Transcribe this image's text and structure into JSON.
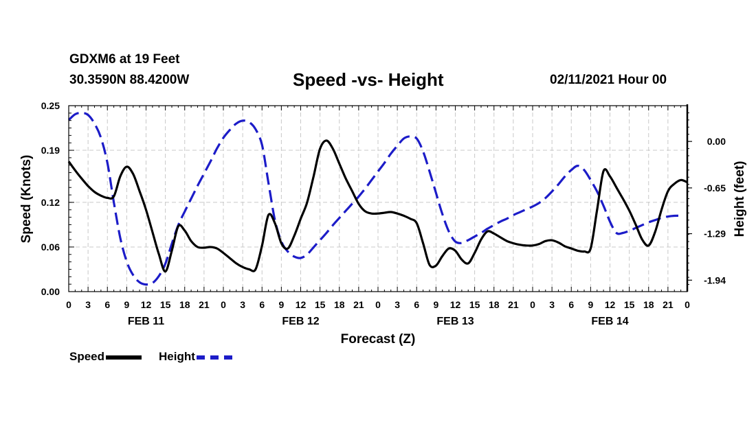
{
  "header": {
    "station": "GDXM6 at 19 Feet",
    "coords": "30.3590N 88.4200W",
    "title": "Speed -vs- Height",
    "date": "02/11/2021 Hour 00"
  },
  "legend": {
    "speed": "Speed",
    "height": "Height"
  },
  "chart_data": {
    "type": "line",
    "title": "Speed -vs- Height",
    "xlabel": "Forecast (Z)",
    "ylabel": "Speed (Knots)",
    "y2label": "Height (feet)",
    "xlim": [
      0,
      96
    ],
    "ylim": [
      0,
      0.25
    ],
    "y2lim": [
      -2.1,
      0.5
    ],
    "grid": true,
    "x_tick_hours": [
      0,
      3,
      6,
      9,
      12,
      15,
      18,
      21,
      24,
      27,
      30,
      33,
      36,
      39,
      42,
      45,
      48,
      51,
      54,
      57,
      60,
      63,
      66,
      69,
      72,
      75,
      78,
      81,
      84,
      87,
      90,
      93,
      96
    ],
    "x_tick_labels": [
      "0",
      "3",
      "6",
      "9",
      "12",
      "15",
      "18",
      "21",
      "0",
      "3",
      "6",
      "9",
      "12",
      "15",
      "18",
      "21",
      "0",
      "3",
      "6",
      "9",
      "12",
      "15",
      "18",
      "21",
      "0",
      "3",
      "6",
      "9",
      "12",
      "15",
      "18",
      "21",
      "0"
    ],
    "date_labels": [
      {
        "hour": 12,
        "label": "FEB 11"
      },
      {
        "hour": 36,
        "label": "FEB 12"
      },
      {
        "hour": 60,
        "label": "FEB 13"
      },
      {
        "hour": 84,
        "label": "FEB 14"
      }
    ],
    "y_ticks": [
      0.0,
      0.06,
      0.12,
      0.19,
      0.25
    ],
    "y_tick_labels": [
      "0.00",
      "0.06",
      "0.12",
      "0.19",
      "0.25"
    ],
    "y2_ticks": [
      0.0,
      -0.65,
      -1.29,
      -1.94
    ],
    "y2_tick_labels": [
      "0.00",
      "-0.65",
      "-1.29",
      "-1.94"
    ],
    "legend_position": "bottom-left",
    "series": [
      {
        "name": "Speed",
        "axis": "left",
        "color": "#000000",
        "dash": "solid",
        "x": [
          0,
          1,
          2,
          3,
          4,
          5,
          6,
          7,
          8,
          9,
          10,
          11,
          12,
          13,
          14,
          15,
          16,
          17,
          18,
          19,
          20,
          21,
          22,
          23,
          24,
          25,
          26,
          27,
          28,
          29,
          30,
          31,
          32,
          33,
          34,
          35,
          36,
          37,
          38,
          39,
          40,
          41,
          42,
          43,
          44,
          45,
          46,
          47,
          48,
          49,
          50,
          51,
          52,
          53,
          54,
          55,
          56,
          57,
          58,
          59,
          60,
          61,
          62,
          63,
          64,
          65,
          66,
          67,
          68,
          69,
          70,
          71,
          72,
          73,
          74,
          75,
          76,
          77,
          78,
          79,
          80,
          81,
          82,
          83,
          84,
          85,
          86,
          87,
          88,
          89,
          90,
          91,
          92,
          93,
          94,
          95,
          96
        ],
        "values": [
          0.175,
          0.163,
          0.152,
          0.142,
          0.134,
          0.129,
          0.126,
          0.128,
          0.155,
          0.168,
          0.158,
          0.135,
          0.11,
          0.08,
          0.05,
          0.027,
          0.055,
          0.088,
          0.082,
          0.068,
          0.06,
          0.059,
          0.06,
          0.058,
          0.052,
          0.045,
          0.038,
          0.033,
          0.03,
          0.03,
          0.062,
          0.103,
          0.092,
          0.065,
          0.058,
          0.075,
          0.098,
          0.12,
          0.155,
          0.192,
          0.203,
          0.192,
          0.172,
          0.152,
          0.135,
          0.118,
          0.108,
          0.105,
          0.105,
          0.106,
          0.107,
          0.105,
          0.102,
          0.098,
          0.092,
          0.065,
          0.036,
          0.035,
          0.048,
          0.058,
          0.055,
          0.043,
          0.038,
          0.052,
          0.07,
          0.081,
          0.078,
          0.073,
          0.068,
          0.065,
          0.063,
          0.062,
          0.062,
          0.064,
          0.068,
          0.069,
          0.066,
          0.061,
          0.058,
          0.055,
          0.054,
          0.058,
          0.11,
          0.162,
          0.155,
          0.14,
          0.125,
          0.109,
          0.09,
          0.07,
          0.062,
          0.08,
          0.11,
          0.135,
          0.145,
          0.15,
          0.147
        ]
      },
      {
        "name": "Height",
        "axis": "right",
        "color": "#1c1cc8",
        "dash": "dashed",
        "x": [
          0,
          1,
          2,
          3,
          4,
          5,
          6,
          7,
          8,
          9,
          10,
          11,
          12,
          13,
          14,
          15,
          16,
          17,
          18,
          19,
          20,
          21,
          22,
          23,
          24,
          25,
          26,
          27,
          28,
          29,
          30,
          31,
          32,
          33,
          34,
          35,
          36,
          37,
          38,
          39,
          40,
          41,
          42,
          43,
          44,
          45,
          46,
          47,
          48,
          49,
          50,
          51,
          52,
          53,
          54,
          55,
          56,
          57,
          58,
          59,
          60,
          61,
          62,
          63,
          64,
          65,
          66,
          67,
          68,
          69,
          70,
          71,
          72,
          73,
          74,
          75,
          76,
          77,
          78,
          79,
          80,
          81,
          82,
          83,
          84,
          85,
          86,
          87,
          88,
          89,
          90,
          91,
          92,
          93,
          94,
          95,
          94.7
        ],
        "values": [
          0.3,
          0.38,
          0.4,
          0.37,
          0.25,
          0.05,
          -0.3,
          -0.85,
          -1.35,
          -1.68,
          -1.87,
          -1.97,
          -2.0,
          -1.98,
          -1.88,
          -1.71,
          -1.43,
          -1.17,
          -0.98,
          -0.8,
          -0.62,
          -0.45,
          -0.28,
          -0.1,
          0.05,
          0.16,
          0.25,
          0.29,
          0.27,
          0.17,
          -0.05,
          -0.58,
          -1.1,
          -1.4,
          -1.54,
          -1.61,
          -1.63,
          -1.58,
          -1.48,
          -1.38,
          -1.28,
          -1.17,
          -1.07,
          -0.97,
          -0.87,
          -0.77,
          -0.66,
          -0.54,
          -0.42,
          -0.3,
          -0.17,
          -0.06,
          0.04,
          0.07,
          0.04,
          -0.14,
          -0.42,
          -0.72,
          -1.02,
          -1.26,
          -1.4,
          -1.42,
          -1.38,
          -1.33,
          -1.28,
          -1.22,
          -1.17,
          -1.12,
          -1.08,
          -1.03,
          -0.99,
          -0.95,
          -0.91,
          -0.86,
          -0.79,
          -0.7,
          -0.6,
          -0.49,
          -0.4,
          -0.34,
          -0.4,
          -0.54,
          -0.7,
          -0.9,
          -1.12,
          -1.28,
          -1.28,
          -1.25,
          -1.21,
          -1.17,
          -1.13,
          -1.1,
          -1.07,
          -1.05,
          -1.04,
          -1.04,
          -1.05
        ]
      }
    ]
  }
}
